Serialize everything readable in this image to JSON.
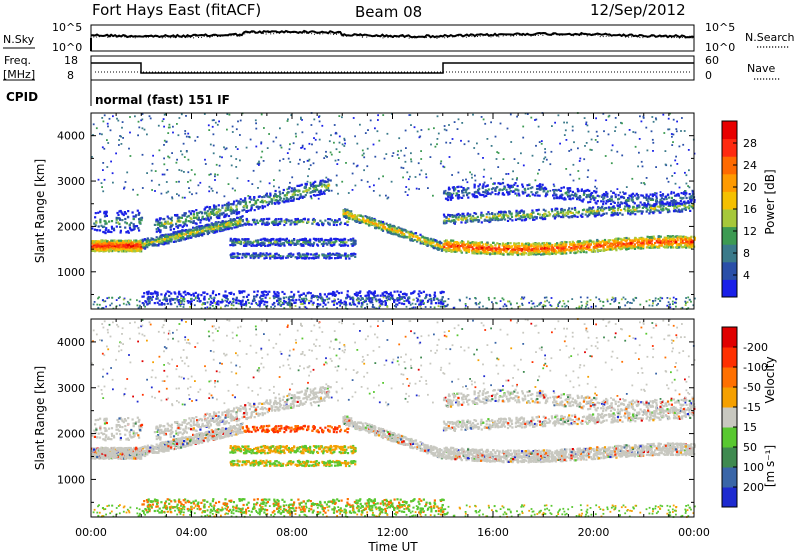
{
  "header": {
    "station": "Fort Hays East (fitACF)",
    "beam": "Beam 08",
    "date": "12/Sep/2012"
  },
  "noise_panel": {
    "left_label": "N.Sky",
    "left_ticks": [
      "10^5",
      "10^0"
    ],
    "right_label": "N.Search",
    "right_ticks": [
      "10^5",
      "10^0"
    ]
  },
  "freq_panel": {
    "left_label_1": "Freq.",
    "left_label_2": "[MHz]",
    "left_ticks": [
      "18",
      "8"
    ],
    "right_label": "Nave",
    "right_ticks": [
      "60",
      "0"
    ],
    "cpid_label": "CPID",
    "program": "normal (fast) 151 IF"
  },
  "colors": {
    "scale_blue": "#0000ff",
    "scale_red": "#ff0000",
    "ground_scatter": "#c8c8c0",
    "velocity_green": "#2ca02c"
  },
  "chart_data": [
    {
      "type": "heatmap",
      "title": "",
      "ylabel": "Slant Range [km]",
      "ylim": [
        180,
        4500
      ],
      "yticks": [
        "1000",
        "2000",
        "3000",
        "4000"
      ],
      "xlim_hours": [
        0,
        24
      ],
      "colorbar": {
        "label": "Power [dB]",
        "ticks": [
          "4",
          "8",
          "12",
          "16",
          "20",
          "24",
          "28"
        ],
        "colors": [
          "#1a20e8",
          "#2a4fa8",
          "#3a7a8a",
          "#3c9a52",
          "#a6c83a",
          "#f5c000",
          "#ff9a00",
          "#ff6a00",
          "#ff2a10",
          "#e80000"
        ]
      },
      "features": [
        {
          "name": "ground scatter band",
          "t_start": 0,
          "t_end": 2,
          "range_km": [
            1450,
            1700
          ],
          "level": "high"
        },
        {
          "name": "ground scatter band",
          "t_start": 2,
          "t_end": 6,
          "range_km": [
            1900,
            2300
          ],
          "level": "medium"
        },
        {
          "name": "ground scatter band",
          "t_start": 14,
          "t_end": 24,
          "range_km": [
            1350,
            1700
          ],
          "level": "high"
        },
        {
          "name": "ground scatter band",
          "t_start": 14,
          "t_end": 24,
          "range_km": [
            2200,
            2500
          ],
          "level": "medium"
        }
      ]
    },
    {
      "type": "heatmap",
      "title": "",
      "ylabel": "Slant Range [km]",
      "ylim": [
        180,
        4500
      ],
      "yticks": [
        "1000",
        "2000",
        "3000",
        "4000"
      ],
      "xlabel": "Time UT",
      "xticks": [
        "00:00",
        "04:00",
        "08:00",
        "12:00",
        "16:00",
        "20:00",
        "00:00"
      ],
      "colorbar": {
        "label": "Velocity",
        "label_units": "[m s⁻¹]",
        "ticks": [
          "200",
          "100",
          "50",
          "15",
          "-15",
          "-50",
          "-100",
          "-200"
        ],
        "colors": [
          "#1e2bd0",
          "#3a66a8",
          "#3f8a50",
          "#58c830",
          "#c8c8c0",
          "#f5a000",
          "#ff7000",
          "#ff3000",
          "#e00000"
        ]
      }
    }
  ]
}
